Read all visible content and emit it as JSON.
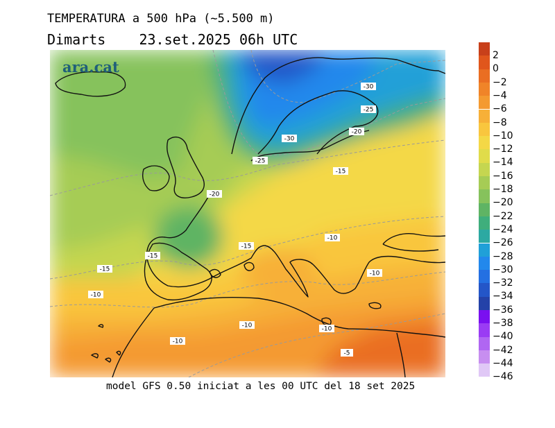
{
  "header": {
    "title": "TEMPERATURA a 500 hPa (~5.500 m)",
    "subtitle": "Dimarts    23.set.2025 06h UTC"
  },
  "map": {
    "logo": "ara.cat",
    "contour_labels": [
      "-30",
      "-25",
      "-20",
      "-30",
      "-25",
      "-15",
      "-20",
      "-10",
      "-15",
      "-15",
      "-15",
      "-10",
      "-10",
      "-10",
      "-10",
      "-10",
      "-5"
    ]
  },
  "legend": {
    "levels": [
      {
        "label": "2",
        "color": "#c8401a"
      },
      {
        "label": "0",
        "color": "#e0561c"
      },
      {
        "label": "−2",
        "color": "#ea6e22"
      },
      {
        "label": "−4",
        "color": "#f08428"
      },
      {
        "label": "−6",
        "color": "#f49a30"
      },
      {
        "label": "−8",
        "color": "#f7b038"
      },
      {
        "label": "−10",
        "color": "#f9c63e"
      },
      {
        "label": "−12",
        "color": "#f4d846"
      },
      {
        "label": "−14",
        "color": "#e0dc4a"
      },
      {
        "label": "−16",
        "color": "#c5d650"
      },
      {
        "label": "−18",
        "color": "#a6cc55"
      },
      {
        "label": "−20",
        "color": "#86c25c"
      },
      {
        "label": "−22",
        "color": "#5fb464"
      },
      {
        "label": "−24",
        "color": "#3fae7c"
      },
      {
        "label": "−26",
        "color": "#2ca9a2"
      },
      {
        "label": "−28",
        "color": "#20a0d8"
      },
      {
        "label": "−30",
        "color": "#2288ec"
      },
      {
        "label": "−32",
        "color": "#2470e2"
      },
      {
        "label": "−34",
        "color": "#2456c8"
      },
      {
        "label": "−36",
        "color": "#2442a8"
      },
      {
        "label": "−38",
        "color": "#7a10f0"
      },
      {
        "label": "−40",
        "color": "#9a3cf4"
      },
      {
        "label": "−42",
        "color": "#b066f2"
      },
      {
        "label": "−44",
        "color": "#c78ef0"
      },
      {
        "label": "−46",
        "color": "#e0c8f6"
      }
    ]
  },
  "footer": {
    "text": "model GFS 0.50 iniciat a les 00 UTC del 18 set 2025"
  }
}
